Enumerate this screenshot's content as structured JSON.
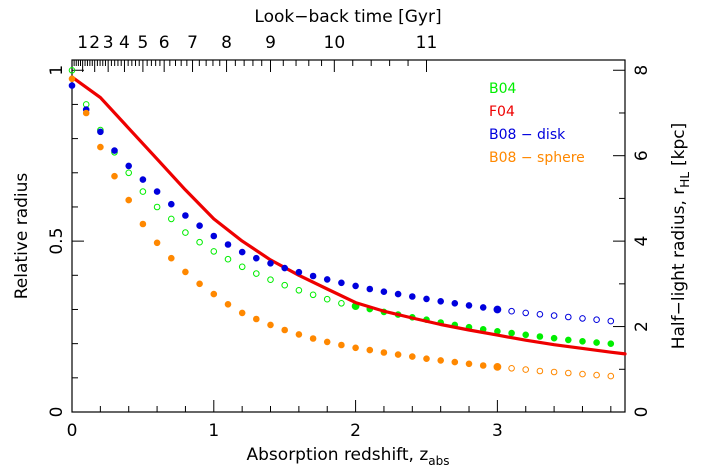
{
  "chart_data": {
    "type": "scatter",
    "xlabel": "Absorption redshift, z",
    "xlabel_sub": "abs",
    "ylabel_left": "Relative radius",
    "ylabel_right": "Half−light radius, r",
    "ylabel_right_sub": "HL",
    "ylabel_right_unit": "[kpc]",
    "xlabel_top": "Look−back time [Gyr]",
    "xlim": [
      0,
      3.9
    ],
    "ylim": [
      0,
      1.03
    ],
    "ylim_right": [
      0,
      8.24
    ],
    "x_ticks": [
      0,
      1,
      2,
      3
    ],
    "y_ticks_left": [
      {
        "value": 0,
        "label": "0"
      },
      {
        "value": 0.5,
        "label": "0.5"
      },
      {
        "value": 1,
        "label": "1"
      }
    ],
    "y_ticks_right": [
      0,
      2,
      4,
      6,
      8
    ],
    "top_ticks": [
      {
        "label": "1",
        "z": 0.075
      },
      {
        "label": "2",
        "z": 0.16
      },
      {
        "label": "3",
        "z": 0.255
      },
      {
        "label": "4",
        "z": 0.37
      },
      {
        "label": "5",
        "z": 0.5
      },
      {
        "label": "6",
        "z": 0.65
      },
      {
        "label": "7",
        "z": 0.85
      },
      {
        "label": "8",
        "z": 1.09
      },
      {
        "label": "9",
        "z": 1.4
      },
      {
        "label": "10",
        "z": 1.85
      },
      {
        "label": "11",
        "z": 2.5
      }
    ],
    "legend_position": "top-right",
    "colors": {
      "B04": "#00ee00",
      "F04": "#ee0000",
      "B08_disk": "#0000dd",
      "B08_sphere": "#ff8800"
    },
    "series": [
      {
        "name": "B04",
        "key": "B04",
        "kind": "points",
        "x": [
          0.0,
          0.1,
          0.2,
          0.3,
          0.4,
          0.5,
          0.6,
          0.7,
          0.8,
          0.9,
          1.0,
          1.1,
          1.2,
          1.3,
          1.4,
          1.5,
          1.6,
          1.7,
          1.8,
          1.9,
          2.0,
          2.1,
          2.2,
          2.3,
          2.4,
          2.5,
          2.6,
          2.7,
          2.8,
          2.9,
          3.0,
          3.1,
          3.2,
          3.3,
          3.4,
          3.5,
          3.6,
          3.7,
          3.8
        ],
        "y": [
          1.0,
          0.9,
          0.825,
          0.76,
          0.7,
          0.645,
          0.6,
          0.565,
          0.525,
          0.497,
          0.47,
          0.447,
          0.425,
          0.405,
          0.387,
          0.371,
          0.356,
          0.343,
          0.33,
          0.318,
          0.31,
          0.301,
          0.293,
          0.285,
          0.277,
          0.27,
          0.262,
          0.255,
          0.248,
          0.242,
          0.236,
          0.231,
          0.226,
          0.221,
          0.216,
          0.211,
          0.207,
          0.203,
          0.2
        ],
        "filled_from": 2.0
      },
      {
        "name": "F04",
        "key": "F04",
        "kind": "line",
        "x": [
          0,
          0.2,
          0.4,
          0.6,
          0.8,
          1.0,
          1.2,
          1.4,
          1.6,
          1.8,
          2.0,
          2.2,
          2.4,
          2.6,
          2.8,
          3.0,
          3.2,
          3.4,
          3.6,
          3.8,
          3.9
        ],
        "y": [
          0.98,
          0.92,
          0.83,
          0.74,
          0.65,
          0.565,
          0.5,
          0.445,
          0.4,
          0.36,
          0.32,
          0.295,
          0.275,
          0.256,
          0.24,
          0.225,
          0.21,
          0.197,
          0.186,
          0.175,
          0.17
        ]
      },
      {
        "name": "B08 − disk",
        "key": "B08_disk",
        "kind": "points",
        "x": [
          0.0,
          0.1,
          0.2,
          0.3,
          0.4,
          0.5,
          0.6,
          0.7,
          0.8,
          0.9,
          1.0,
          1.1,
          1.2,
          1.3,
          1.4,
          1.5,
          1.6,
          1.7,
          1.8,
          1.9,
          2.0,
          2.1,
          2.2,
          2.3,
          2.4,
          2.5,
          2.6,
          2.7,
          2.8,
          2.9,
          3.0,
          3.1,
          3.2,
          3.3,
          3.4,
          3.5,
          3.6,
          3.7,
          3.8
        ],
        "y": [
          0.955,
          0.885,
          0.82,
          0.765,
          0.72,
          0.68,
          0.645,
          0.608,
          0.575,
          0.545,
          0.515,
          0.49,
          0.468,
          0.45,
          0.435,
          0.421,
          0.409,
          0.398,
          0.388,
          0.378,
          0.369,
          0.36,
          0.352,
          0.345,
          0.338,
          0.331,
          0.324,
          0.318,
          0.312,
          0.306,
          0.3,
          0.295,
          0.29,
          0.286,
          0.282,
          0.278,
          0.274,
          0.27,
          0.266
        ],
        "filled_until": 3.0
      },
      {
        "name": "B08 − sphere",
        "key": "B08_sphere",
        "kind": "points",
        "x": [
          0.0,
          0.1,
          0.2,
          0.3,
          0.4,
          0.5,
          0.6,
          0.7,
          0.8,
          0.9,
          1.0,
          1.1,
          1.2,
          1.3,
          1.4,
          1.5,
          1.6,
          1.7,
          1.8,
          1.9,
          2.0,
          2.1,
          2.2,
          2.3,
          2.4,
          2.5,
          2.6,
          2.7,
          2.8,
          2.9,
          3.0,
          3.1,
          3.2,
          3.3,
          3.4,
          3.5,
          3.6,
          3.7,
          3.8
        ],
        "y": [
          0.975,
          0.875,
          0.775,
          0.69,
          0.62,
          0.55,
          0.495,
          0.45,
          0.41,
          0.375,
          0.345,
          0.315,
          0.29,
          0.272,
          0.255,
          0.24,
          0.227,
          0.215,
          0.205,
          0.196,
          0.188,
          0.181,
          0.174,
          0.168,
          0.162,
          0.156,
          0.151,
          0.146,
          0.141,
          0.136,
          0.132,
          0.128,
          0.124,
          0.12,
          0.117,
          0.114,
          0.111,
          0.108,
          0.105
        ],
        "filled_until": 3.0
      }
    ]
  }
}
